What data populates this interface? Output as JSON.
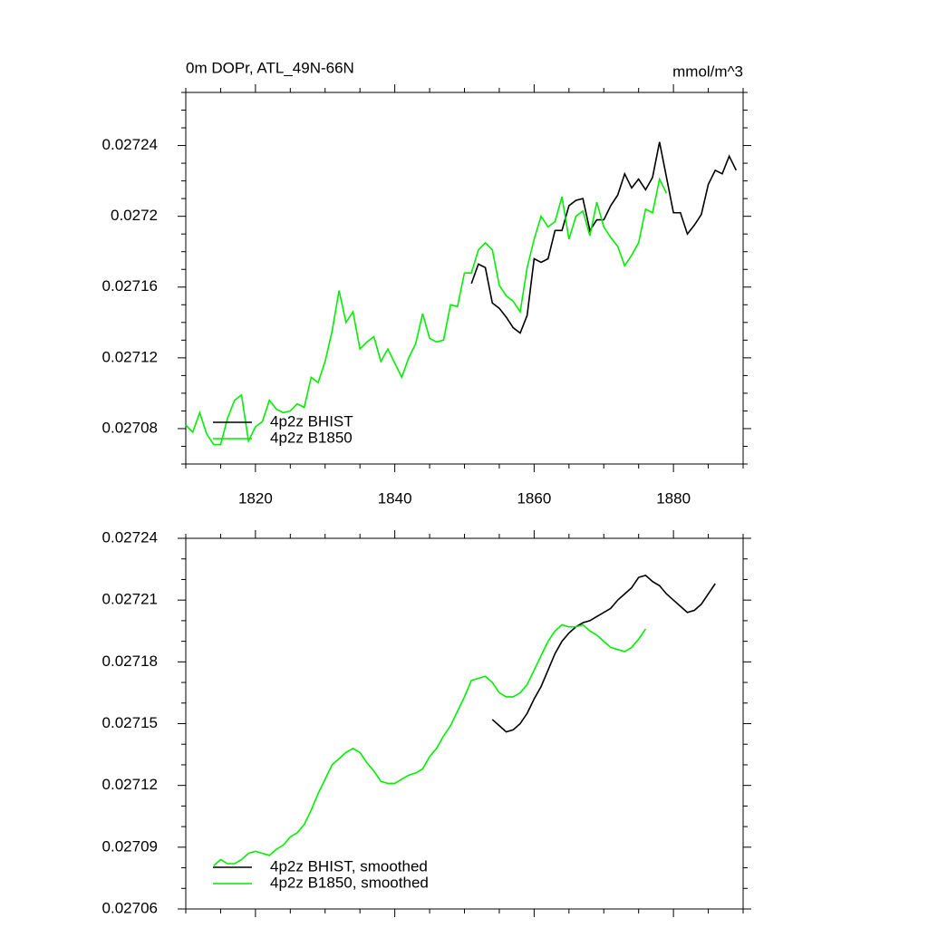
{
  "chart_data": [
    {
      "type": "line",
      "title": "0m DOPr, ATL_49N-66N",
      "units": "mmol/m^3",
      "xlim": [
        1810,
        1890
      ],
      "xticks": [
        1820,
        1840,
        1860,
        1880
      ],
      "xminorticks": [
        1810,
        1815,
        1825,
        1830,
        1835,
        1845,
        1850,
        1855,
        1865,
        1870,
        1875,
        1885,
        1890
      ],
      "ylim": [
        0.02706,
        0.02727
      ],
      "yticks": [
        0.02708,
        0.02712,
        0.02716,
        0.0272,
        0.02724
      ],
      "yminorticks": [
        0.02706,
        0.02707,
        0.02709,
        0.0271,
        0.02711,
        0.02713,
        0.02714,
        0.02715,
        0.02717,
        0.02718,
        0.02719,
        0.02721,
        0.02722,
        0.02723,
        0.02725,
        0.02726,
        0.02727
      ],
      "show_x_tick_labels": true,
      "legend": "lower left",
      "series": [
        {
          "name": "4p2z BHIST",
          "color": "#000000",
          "x": [
            1851,
            1852,
            1853,
            1854,
            1855,
            1856,
            1857,
            1858,
            1859,
            1860,
            1861,
            1862,
            1863,
            1864,
            1865,
            1866,
            1867,
            1868,
            1869,
            1870,
            1871,
            1872,
            1873,
            1874,
            1875,
            1876,
            1877,
            1878,
            1879,
            1880,
            1881,
            1882,
            1883,
            1884,
            1885,
            1886,
            1887,
            1888,
            1889
          ],
          "values": [
            0.027162,
            0.027173,
            0.027171,
            0.027151,
            0.027148,
            0.027143,
            0.027137,
            0.027134,
            0.027144,
            0.027176,
            0.027174,
            0.027176,
            0.027192,
            0.027192,
            0.027206,
            0.027209,
            0.02721,
            0.027192,
            0.027198,
            0.027198,
            0.027206,
            0.027212,
            0.027224,
            0.027216,
            0.027221,
            0.027215,
            0.027222,
            0.027242,
            0.027222,
            0.027202,
            0.027202,
            0.02719,
            0.027195,
            0.027201,
            0.027218,
            0.027226,
            0.027224,
            0.027234,
            0.027226
          ]
        },
        {
          "name": "4p2z B1850",
          "color": "#00ee00",
          "x": [
            1810,
            1811,
            1812,
            1813,
            1814,
            1815,
            1816,
            1817,
            1818,
            1819,
            1820,
            1821,
            1822,
            1823,
            1824,
            1825,
            1826,
            1827,
            1828,
            1829,
            1830,
            1831,
            1832,
            1833,
            1834,
            1835,
            1836,
            1837,
            1838,
            1839,
            1840,
            1841,
            1842,
            1843,
            1844,
            1845,
            1846,
            1847,
            1848,
            1849,
            1850,
            1851,
            1852,
            1853,
            1854,
            1855,
            1856,
            1857,
            1858,
            1859,
            1860,
            1861,
            1862,
            1863,
            1864,
            1865,
            1866,
            1867,
            1868,
            1869,
            1870,
            1871,
            1872,
            1873,
            1874,
            1875,
            1876,
            1877,
            1878,
            1879
          ],
          "values": [
            0.027082,
            0.027078,
            0.027089,
            0.027077,
            0.027071,
            0.027071,
            0.027086,
            0.027096,
            0.027099,
            0.027073,
            0.027081,
            0.027084,
            0.027096,
            0.027091,
            0.027089,
            0.02709,
            0.027094,
            0.027092,
            0.027109,
            0.027106,
            0.027118,
            0.027135,
            0.027158,
            0.02714,
            0.027146,
            0.027125,
            0.027129,
            0.027132,
            0.027118,
            0.027125,
            0.027117,
            0.027109,
            0.02712,
            0.027128,
            0.027145,
            0.027131,
            0.027129,
            0.02713,
            0.02715,
            0.027149,
            0.027168,
            0.027168,
            0.027181,
            0.027185,
            0.027181,
            0.027161,
            0.027155,
            0.027152,
            0.027146,
            0.027171,
            0.027187,
            0.0272,
            0.027194,
            0.027197,
            0.027211,
            0.027187,
            0.0272,
            0.027203,
            0.027189,
            0.027208,
            0.027194,
            0.027188,
            0.027183,
            0.027172,
            0.027178,
            0.027185,
            0.027204,
            0.027202,
            0.027221,
            0.027213
          ]
        }
      ]
    },
    {
      "type": "line",
      "xlim": [
        1810,
        1890
      ],
      "xticks": [
        1820,
        1840,
        1860,
        1880
      ],
      "xminorticks": [
        1810,
        1815,
        1825,
        1830,
        1835,
        1845,
        1850,
        1855,
        1865,
        1870,
        1875,
        1885,
        1890
      ],
      "ylim": [
        0.02706,
        0.02724
      ],
      "yticks": [
        0.02706,
        0.02709,
        0.02712,
        0.02715,
        0.02718,
        0.02721,
        0.02724
      ],
      "yminorticks": [
        0.02707,
        0.02708,
        0.0271,
        0.02711,
        0.02713,
        0.02714,
        0.02716,
        0.02717,
        0.02719,
        0.0272,
        0.02722,
        0.02723
      ],
      "show_x_tick_labels": false,
      "legend": "lower left",
      "series": [
        {
          "name": "4p2z BHIST, smoothed",
          "color": "#000000",
          "x": [
            1854,
            1855,
            1856,
            1857,
            1858,
            1859,
            1860,
            1861,
            1862,
            1863,
            1864,
            1865,
            1866,
            1867,
            1868,
            1869,
            1870,
            1871,
            1872,
            1873,
            1874,
            1875,
            1876,
            1877,
            1878,
            1879,
            1880,
            1881,
            1882,
            1883,
            1884,
            1885,
            1886
          ],
          "values": [
            0.027152,
            0.027149,
            0.027146,
            0.027147,
            0.02715,
            0.027155,
            0.027162,
            0.027168,
            0.027176,
            0.027184,
            0.02719,
            0.027194,
            0.027197,
            0.027199,
            0.0272,
            0.027202,
            0.027204,
            0.027206,
            0.02721,
            0.027213,
            0.027216,
            0.027221,
            0.027222,
            0.027219,
            0.027217,
            0.027213,
            0.02721,
            0.027207,
            0.027204,
            0.027205,
            0.027208,
            0.027213,
            0.027218
          ]
        },
        {
          "name": "4p2z B1850, smoothed",
          "color": "#00ee00",
          "x": [
            1814,
            1815,
            1816,
            1817,
            1818,
            1819,
            1820,
            1821,
            1822,
            1823,
            1824,
            1825,
            1826,
            1827,
            1828,
            1829,
            1830,
            1831,
            1832,
            1833,
            1834,
            1835,
            1836,
            1837,
            1838,
            1839,
            1840,
            1841,
            1842,
            1843,
            1844,
            1845,
            1846,
            1847,
            1848,
            1849,
            1850,
            1851,
            1852,
            1853,
            1854,
            1855,
            1856,
            1857,
            1858,
            1859,
            1860,
            1861,
            1862,
            1863,
            1864,
            1865,
            1866,
            1867,
            1868,
            1869,
            1870,
            1871,
            1872,
            1873,
            1874,
            1875,
            1876
          ],
          "values": [
            0.027081,
            0.027084,
            0.027082,
            0.027082,
            0.027084,
            0.027087,
            0.027088,
            0.027087,
            0.027086,
            0.027089,
            0.027091,
            0.027095,
            0.027097,
            0.027101,
            0.027108,
            0.027116,
            0.027123,
            0.02713,
            0.027133,
            0.027136,
            0.027138,
            0.027136,
            0.027131,
            0.027127,
            0.027122,
            0.027121,
            0.027121,
            0.027123,
            0.027125,
            0.027126,
            0.027128,
            0.027134,
            0.027138,
            0.027144,
            0.027149,
            0.027156,
            0.027163,
            0.027171,
            0.027172,
            0.027173,
            0.02717,
            0.027165,
            0.027163,
            0.027163,
            0.027165,
            0.027169,
            0.027176,
            0.027183,
            0.02719,
            0.027195,
            0.027198,
            0.027197,
            0.027197,
            0.027198,
            0.027195,
            0.027193,
            0.02719,
            0.027187,
            0.027186,
            0.027185,
            0.027187,
            0.027191,
            0.027196
          ]
        }
      ]
    }
  ]
}
